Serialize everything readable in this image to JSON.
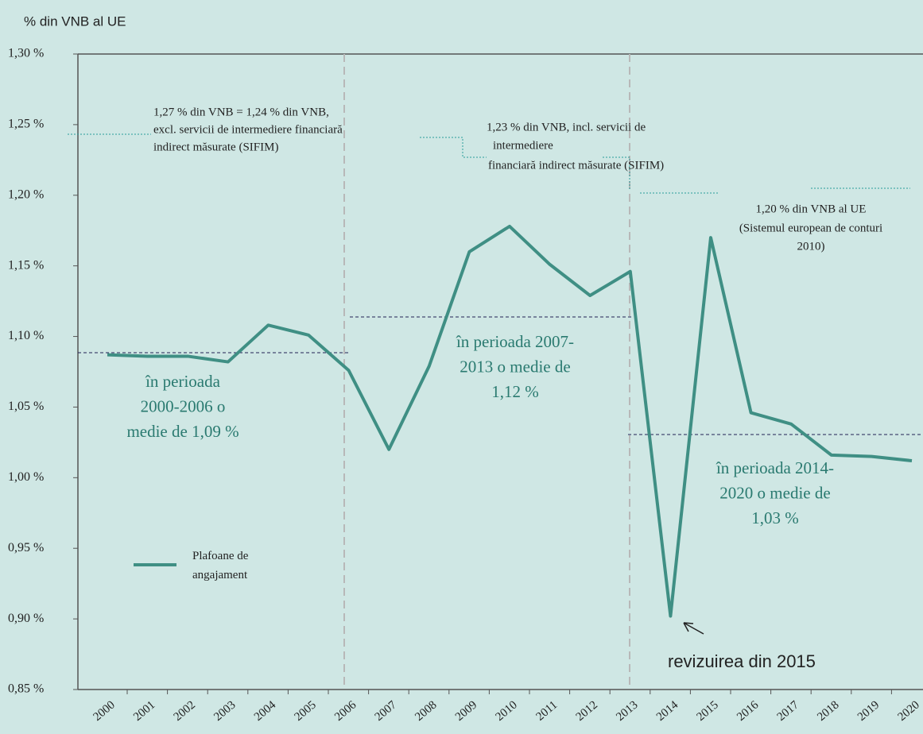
{
  "chart_data": {
    "type": "line",
    "y_axis_label": "% din VNB al UE",
    "categories": [
      "2000",
      "2001",
      "2002",
      "2003",
      "2004",
      "2005",
      "2006",
      "2007",
      "2008",
      "2009",
      "2010",
      "2011",
      "2012",
      "2013",
      "2014",
      "2015",
      "2016",
      "2017",
      "2018",
      "2019",
      "2020"
    ],
    "series": [
      {
        "name": "Plafoane de angajament",
        "color": "#3f8f84",
        "values": [
          1.087,
          1.086,
          1.086,
          1.082,
          1.108,
          1.101,
          1.076,
          1.02,
          1.079,
          1.16,
          1.178,
          1.151,
          1.129,
          1.146,
          0.902,
          1.17,
          1.046,
          1.038,
          1.016,
          1.015,
          1.012
        ]
      }
    ],
    "ylim": [
      0.85,
      1.3
    ],
    "yticks": [
      {
        "value": 0.85,
        "label": "0,85 %"
      },
      {
        "value": 0.9,
        "label": "0,90 %"
      },
      {
        "value": 0.95,
        "label": "0,95 %"
      },
      {
        "value": 1.0,
        "label": "1,00 %"
      },
      {
        "value": 1.05,
        "label": "1,05 %"
      },
      {
        "value": 1.1,
        "label": "1,10 %"
      },
      {
        "value": 1.15,
        "label": "1,15 %"
      },
      {
        "value": 1.2,
        "label": "1,20 %"
      },
      {
        "value": 1.25,
        "label": "1,25 %"
      },
      {
        "value": 1.3,
        "label": "1,30 %"
      }
    ],
    "legend": "lower left",
    "annotations": [
      [
        "1,27 % din VNB = 1,24 % din VNB,",
        "excl. servicii de intermediere financiară",
        "indirect măsurate (SIFIM)"
      ],
      [
        "1,23 % din VNB, incl. servicii de",
        "intermediere",
        "financiară indirect măsurate (SIFIM)"
      ],
      [
        "1,20 % din VNB al UE",
        "(Sistemul european de conturi",
        "2010)"
      ]
    ],
    "period_notes": [
      [
        "în perioada",
        "2000-2006 o",
        "medie de 1,09 %"
      ],
      [
        "în perioada 2007-",
        "2013 o medie de",
        "1,12 %"
      ],
      [
        "în perioada 2014-",
        "2020 o medie de",
        "1,03 %"
      ]
    ],
    "callout": "revizuirea din 2015"
  }
}
